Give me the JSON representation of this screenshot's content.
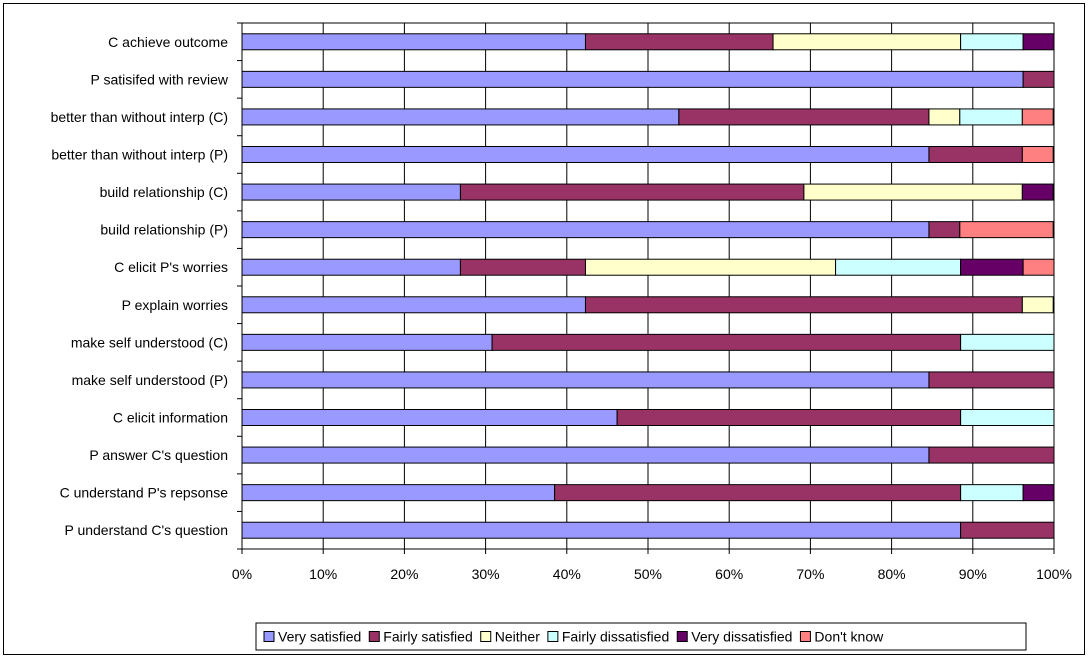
{
  "chart_data": {
    "type": "bar",
    "orientation": "horizontal",
    "stacked": "percent",
    "title": "",
    "xlabel": "",
    "ylabel": "",
    "xlim": [
      0,
      100
    ],
    "grid": true,
    "legend_position": "bottom",
    "x_ticks": [
      "0%",
      "10%",
      "20%",
      "30%",
      "40%",
      "50%",
      "60%",
      "70%",
      "80%",
      "90%",
      "100%"
    ],
    "categories": [
      "C achieve outcome",
      "P satisifed with review",
      "better than without interp (C)",
      "better than without interp (P)",
      "build relationship (C)",
      "build relationship (P)",
      "C elicit P's worries",
      "P explain worries",
      "make self understood (C)",
      "make self understood (P)",
      "C elicit information",
      "P answer C's question",
      "C understand P's repsonse",
      "P understand C's question"
    ],
    "series": [
      {
        "name": "Very satisfied",
        "color": "#9999FF",
        "values": [
          42.3,
          96.2,
          53.8,
          84.6,
          26.9,
          84.6,
          26.9,
          42.3,
          30.8,
          84.6,
          46.2,
          84.6,
          38.5,
          88.5
        ]
      },
      {
        "name": "Fairly satisfied",
        "color": "#993366",
        "values": [
          23.1,
          3.8,
          30.8,
          11.5,
          42.3,
          3.8,
          15.4,
          53.8,
          57.7,
          15.4,
          42.3,
          15.4,
          50.0,
          11.5
        ]
      },
      {
        "name": "Neither",
        "color": "#FFFFCC",
        "values": [
          23.1,
          0,
          3.8,
          0,
          26.9,
          0,
          30.8,
          3.8,
          0,
          0,
          0,
          0,
          0,
          0
        ]
      },
      {
        "name": "Fairly dissatisfied",
        "color": "#CCFFFF",
        "values": [
          7.7,
          0,
          7.7,
          0,
          0,
          0,
          15.4,
          0,
          11.5,
          0,
          11.5,
          0,
          7.7,
          0
        ]
      },
      {
        "name": "Very dissatisfied",
        "color": "#660066",
        "values": [
          3.8,
          0,
          0,
          0,
          3.8,
          0,
          7.7,
          0,
          0,
          0,
          0,
          0,
          3.8,
          0
        ]
      },
      {
        "name": "Don't know",
        "color": "#FF8080",
        "values": [
          0,
          0,
          3.8,
          3.8,
          0,
          11.5,
          3.8,
          0,
          0,
          0,
          0,
          0,
          0,
          0
        ]
      }
    ]
  }
}
